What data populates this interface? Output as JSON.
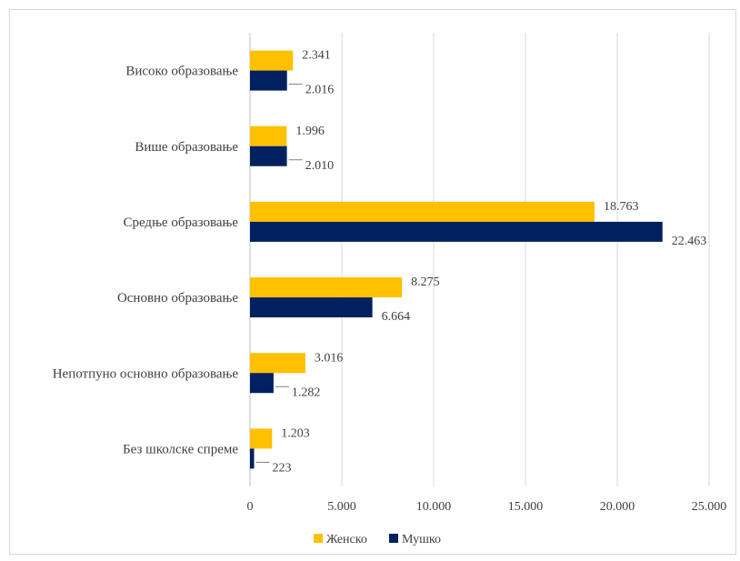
{
  "chart_data": {
    "type": "bar",
    "orientation": "horizontal",
    "categories": [
      "Без школске спреме",
      "Непотпуно основно образовање",
      "Основно образовање",
      "Средње образовање",
      "Више образовање",
      "Високо образовање"
    ],
    "series": [
      {
        "name": "Женско",
        "color": "#FFC000",
        "values": [
          1203,
          3016,
          8275,
          18763,
          1996,
          2341
        ],
        "labels": [
          "1.203",
          "3.016",
          "8.275",
          "18.763",
          "1.996",
          "2.341"
        ]
      },
      {
        "name": "Мушко",
        "color": "#002060",
        "values": [
          223,
          1282,
          6664,
          22463,
          2010,
          2016
        ],
        "labels": [
          "223",
          "1.282",
          "6.664",
          "22.463",
          "2.010",
          "2.016"
        ]
      }
    ],
    "xlim": [
      0,
      25000
    ],
    "xticks": [
      0,
      5000,
      10000,
      15000,
      20000,
      25000
    ],
    "xtick_labels": [
      "0",
      "5.000",
      "10.000",
      "15.000",
      "20.000",
      "25.000"
    ],
    "grid": true,
    "legend_position": "bottom"
  }
}
